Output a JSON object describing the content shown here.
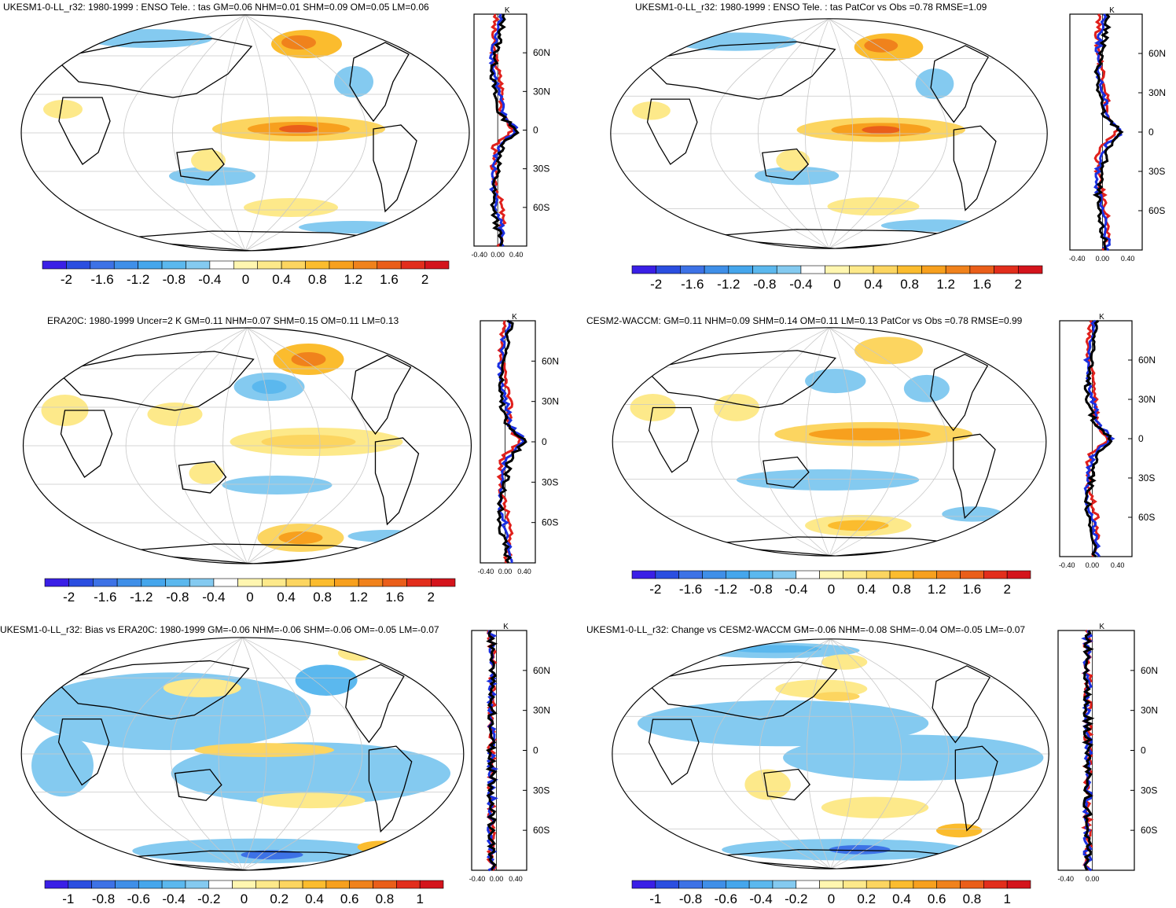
{
  "palette": [
    "#3a1fe6",
    "#2b4ee0",
    "#3d72e6",
    "#3f8fe8",
    "#45a6ec",
    "#5bb8ee",
    "#84caf0",
    "#ffffff",
    "#fff6b0",
    "#fde98a",
    "#fcd560",
    "#fbbc2e",
    "#f7a01e",
    "#f0821c",
    "#ea5e1a",
    "#e22e1c",
    "#d4141c"
  ],
  "panels": [
    {
      "id": "p1",
      "title": "UKESM1-0-LL_r32: 1980-1999 : ENSO Tele. : tas GM=0.06 NHM=0.01 SHM=0.09 OM=0.05 LM=0.06",
      "colorbar_labels": [
        "-2",
        "-1.6",
        "-1.2",
        "-0.8",
        "-0.4",
        "0",
        "0.4",
        "0.8",
        "1.2",
        "1.6",
        "2"
      ],
      "profile_y_labels": [
        "60N",
        "30N",
        "0",
        "30S",
        "60S"
      ],
      "profile_x_labels": [
        "-0.40",
        "0.00",
        "0.40"
      ],
      "profile_unit": "K"
    },
    {
      "id": "p2",
      "title": "UKESM1-0-LL_r32: 1980-1999 : ENSO Tele. : tas PatCor vs Obs =0.78 RMSE=1.09",
      "colorbar_labels": [
        "-2",
        "-1.6",
        "-1.2",
        "-0.8",
        "-0.4",
        "0",
        "0.4",
        "0.8",
        "1.2",
        "1.6",
        "2"
      ],
      "profile_y_labels": [
        "60N",
        "30N",
        "0",
        "30S",
        "60S"
      ],
      "profile_x_labels": [
        "-0.40",
        "0.00",
        "0.40"
      ],
      "profile_unit": "K"
    },
    {
      "id": "p3",
      "title": "ERA20C: 1980-1999 Uncer=2 K GM=0.11 NHM=0.07 SHM=0.15 OM=0.11 LM=0.13",
      "colorbar_labels": [
        "-2",
        "-1.6",
        "-1.2",
        "-0.8",
        "-0.4",
        "0",
        "0.4",
        "0.8",
        "1.2",
        "1.6",
        "2"
      ],
      "profile_y_labels": [
        "60N",
        "30N",
        "0",
        "30S",
        "60S"
      ],
      "profile_x_labels": [
        "-0.40",
        "0.00",
        "0.40"
      ],
      "profile_unit": "K"
    },
    {
      "id": "p4",
      "title": "CESM2-WACCM: GM=0.11 NHM=0.09 SHM=0.14 OM=0.11 LM=0.13 PatCor vs Obs =0.78 RMSE=0.99",
      "colorbar_labels": [
        "-2",
        "-1.6",
        "-1.2",
        "-0.8",
        "-0.4",
        "0",
        "0.4",
        "0.8",
        "1.2",
        "1.6",
        "2"
      ],
      "profile_y_labels": [
        "60N",
        "30N",
        "0",
        "30S",
        "60S"
      ],
      "profile_x_labels": [
        "-0.40",
        "0.00",
        "0.40"
      ],
      "profile_unit": "K"
    },
    {
      "id": "p5",
      "title": "UKESM1-0-LL_r32: Bias vs ERA20C: 1980-1999 GM=-0.06 NHM=-0.06 SHM=-0.06 OM=-0.05 LM=-0.07",
      "colorbar_labels": [
        "-1",
        "-0.8",
        "-0.6",
        "-0.4",
        "-0.2",
        "0",
        "0.2",
        "0.4",
        "0.6",
        "0.8",
        "1"
      ],
      "profile_y_labels": [
        "60N",
        "30N",
        "0",
        "30S",
        "60S"
      ],
      "profile_x_labels": [
        "-0.40",
        "0.00",
        "0.40"
      ],
      "profile_unit": "K"
    },
    {
      "id": "p6",
      "title": "UKESM1-0-LL_r32: Change vs CESM2-WACCM GM=-0.06 NHM=-0.08 SHM=-0.04 OM=-0.05 LM=-0.07",
      "colorbar_labels": [
        "-1",
        "-0.8",
        "-0.6",
        "-0.4",
        "-0.2",
        "0",
        "0.2",
        "0.4",
        "0.6",
        "0.8",
        "1"
      ],
      "profile_y_labels": [
        "60N",
        "30N",
        "0",
        "30S",
        "60S"
      ],
      "profile_x_labels": [
        "-0.40",
        "0.00"
      ],
      "profile_unit": "K"
    }
  ]
}
